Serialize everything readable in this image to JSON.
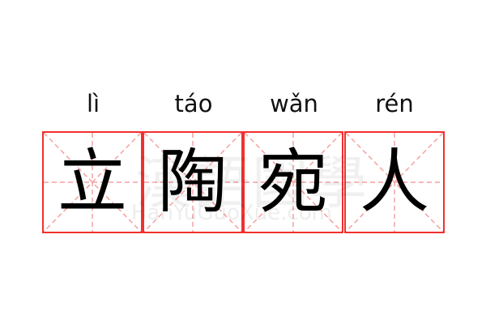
{
  "words": [
    {
      "pinyin": "lì",
      "char": "立"
    },
    {
      "pinyin": "táo",
      "char": "陶"
    },
    {
      "pinyin": "wǎn",
      "char": "宛"
    },
    {
      "pinyin": "rén",
      "char": "人"
    }
  ],
  "watermark": {
    "chinese": "漢語國學",
    "latin": "HanYuGuoXue.com"
  },
  "colors": {
    "border": "#f23030",
    "guide": "#f6a0a0",
    "text": "#000000"
  }
}
